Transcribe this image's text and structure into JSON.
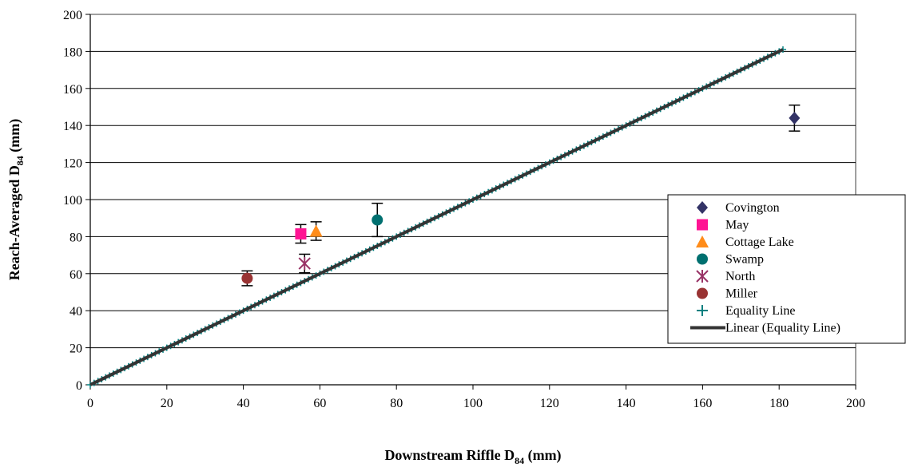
{
  "chart_data": {
    "type": "scatter",
    "title": "",
    "xlabel_main": "Downstream Riffle D",
    "xlabel_sub": "84",
    "xlabel_tail": " (mm)",
    "ylabel_main": "Reach-Averaged D",
    "ylabel_sub": "84",
    "ylabel_tail": " (mm)",
    "xlim": [
      0,
      200
    ],
    "ylim": [
      0,
      200
    ],
    "xticks": [
      0,
      20,
      40,
      60,
      80,
      100,
      120,
      140,
      160,
      180,
      200
    ],
    "yticks": [
      0,
      20,
      40,
      60,
      80,
      100,
      120,
      140,
      160,
      180,
      200
    ],
    "grid": "horizontal",
    "legend_position": "right",
    "series": [
      {
        "name": "Covington",
        "marker": "diamond",
        "color": "#333366",
        "points": [
          {
            "x": 184,
            "y": 144,
            "err": 7
          }
        ]
      },
      {
        "name": "May",
        "marker": "square",
        "color": "#ff1493",
        "points": [
          {
            "x": 55,
            "y": 81.5,
            "err": 5
          }
        ]
      },
      {
        "name": "Cottage Lake",
        "marker": "triangle",
        "color": "#ff8c1a",
        "points": [
          {
            "x": 59,
            "y": 83,
            "err": 5
          }
        ]
      },
      {
        "name": "Swamp",
        "marker": "circle",
        "color": "#007070",
        "points": [
          {
            "x": 75,
            "y": 89,
            "err": 9
          }
        ]
      },
      {
        "name": "North",
        "marker": "star",
        "color": "#993366",
        "points": [
          {
            "x": 56,
            "y": 65.5,
            "err": 5
          }
        ]
      },
      {
        "name": "Miller",
        "marker": "circle",
        "color": "#993333",
        "points": [
          {
            "x": 41,
            "y": 57.5,
            "err": 4
          }
        ]
      },
      {
        "name": "Equality Line",
        "marker": "plus",
        "color": "#008080",
        "points": [
          {
            "x": 0,
            "y": 0
          },
          {
            "x": 181,
            "y": 181
          }
        ]
      },
      {
        "name": "Linear (Equality Line)",
        "marker": "line",
        "color": "#333333",
        "points": [
          {
            "x": 0,
            "y": 0
          },
          {
            "x": 181,
            "y": 181
          }
        ]
      }
    ]
  }
}
